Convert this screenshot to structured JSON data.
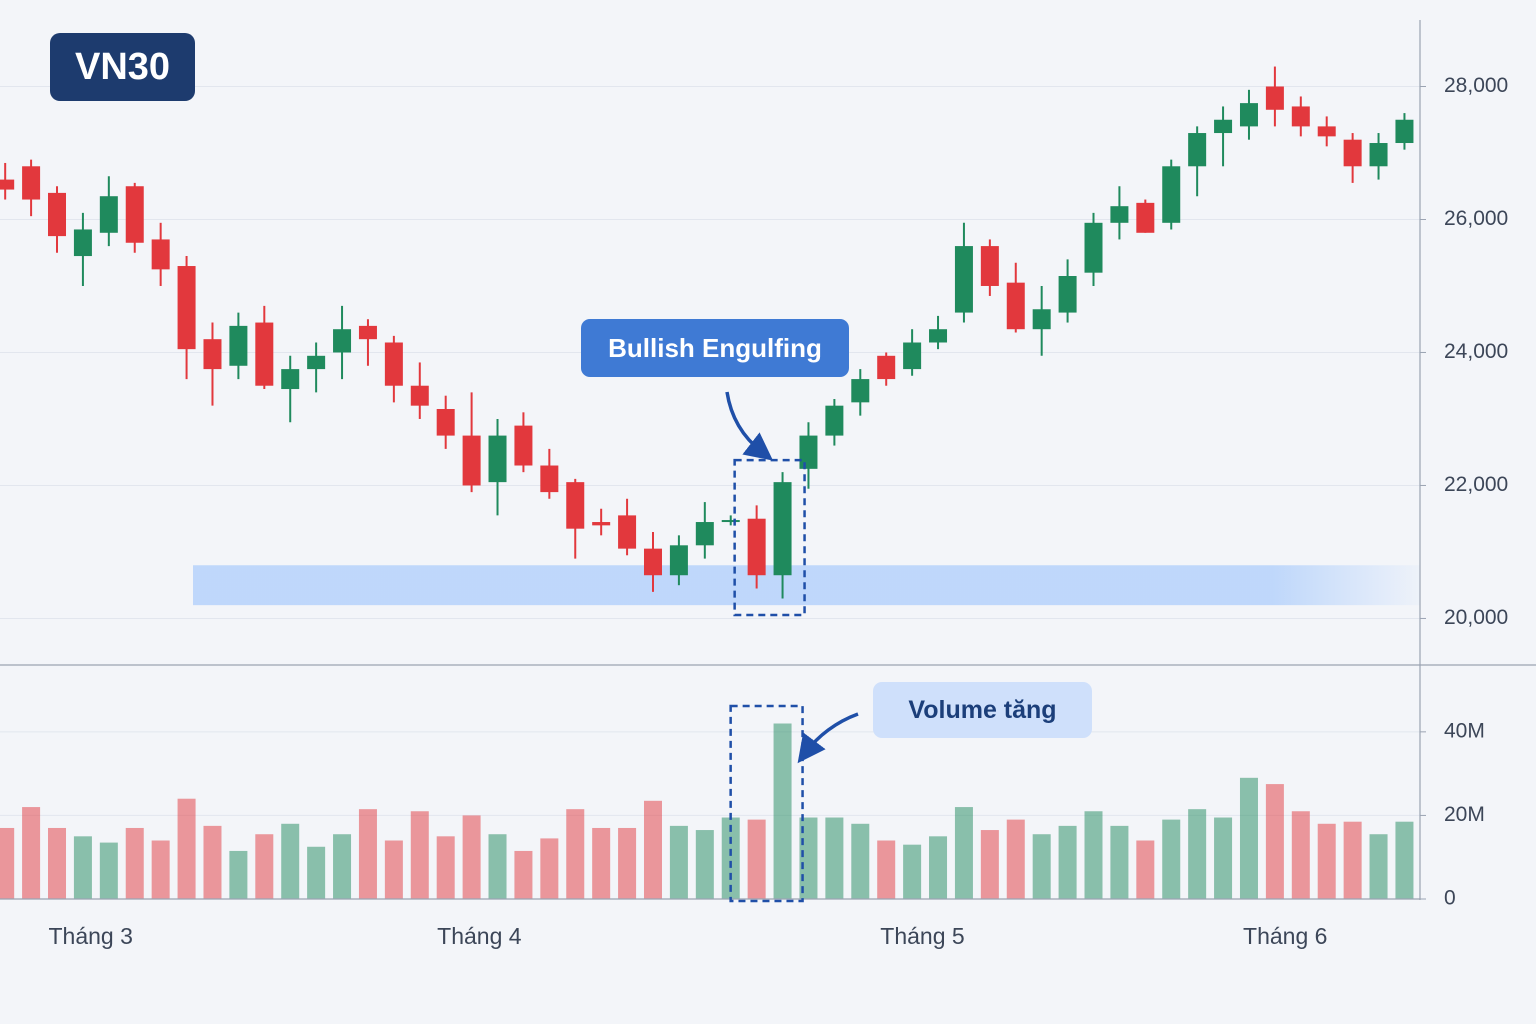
{
  "chart_data": {
    "type": "candlestick",
    "title": "VN30",
    "annotations": [
      "Bullish Engulfing",
      "Volume tăng"
    ],
    "up_color": "#1f8a5d",
    "down_color": "#e2383d",
    "x": [
      0,
      1,
      2,
      3,
      4,
      5,
      6,
      7,
      8,
      9,
      10,
      11,
      12,
      13,
      14,
      15,
      16,
      17,
      18,
      19,
      20,
      21,
      22,
      23,
      24,
      25,
      26,
      27,
      28,
      29,
      30,
      31,
      32,
      33,
      34,
      35,
      36,
      37,
      38,
      39,
      40,
      41,
      42,
      43,
      44,
      45,
      46,
      47,
      48,
      49,
      50,
      51,
      52,
      53,
      54
    ],
    "open": [
      26600,
      26800,
      26400,
      25450,
      25800,
      26500,
      25700,
      25300,
      24200,
      23800,
      24450,
      23450,
      23750,
      24000,
      24400,
      24150,
      23500,
      23150,
      22750,
      22050,
      22900,
      22300,
      22050,
      21450,
      21550,
      21050,
      20650,
      21100,
      21450,
      21500,
      20650,
      22250,
      22750,
      23250,
      23950,
      23750,
      24150,
      24600,
      25600,
      25050,
      24350,
      24600,
      25200,
      25950,
      26250,
      25950,
      26800,
      27300,
      27400,
      28000,
      27700,
      27400,
      27200,
      26800,
      27150
    ],
    "close": [
      26450,
      26300,
      25750,
      25850,
      26350,
      25650,
      25250,
      24050,
      23750,
      24400,
      23500,
      23750,
      23950,
      24350,
      24200,
      23500,
      23200,
      22750,
      22000,
      22750,
      22300,
      21900,
      21350,
      21400,
      21050,
      20650,
      21100,
      21450,
      21480,
      20650,
      22050,
      22750,
      23200,
      23600,
      23600,
      24150,
      24350,
      25600,
      25000,
      24350,
      24650,
      25150,
      25950,
      26200,
      25800,
      26800,
      27300,
      27500,
      27750,
      27650,
      27400,
      27250,
      26800,
      27150,
      27500
    ],
    "high": [
      26850,
      26900,
      26500,
      26100,
      26650,
      26550,
      25950,
      25450,
      24450,
      24600,
      24700,
      23950,
      24150,
      24700,
      24500,
      24250,
      23850,
      23350,
      23400,
      23000,
      23100,
      22550,
      22100,
      21650,
      21800,
      21300,
      21250,
      21750,
      21550,
      21700,
      22200,
      22950,
      23300,
      23750,
      24000,
      24350,
      24550,
      25950,
      25700,
      25350,
      25000,
      25400,
      26100,
      26500,
      26300,
      26900,
      27400,
      27700,
      27950,
      28300,
      27850,
      27550,
      27300,
      27300,
      27600
    ],
    "low": [
      26300,
      26050,
      25500,
      25000,
      25600,
      25500,
      25000,
      23600,
      23200,
      23600,
      23450,
      22950,
      23400,
      23600,
      23800,
      23250,
      23000,
      22550,
      21900,
      21550,
      22200,
      21800,
      20900,
      21250,
      20950,
      20400,
      20500,
      20900,
      21400,
      20450,
      20300,
      21950,
      22600,
      23050,
      23500,
      23650,
      24050,
      24450,
      24850,
      24300,
      23950,
      24450,
      25000,
      25700,
      25800,
      25850,
      26350,
      26800,
      27200,
      27400,
      27250,
      27100,
      26550,
      26600,
      27050
    ],
    "volume": [
      17000000,
      22000000,
      17000000,
      15000000,
      13500000,
      17000000,
      14000000,
      24000000,
      17500000,
      11500000,
      15500000,
      18000000,
      12500000,
      15500000,
      21500000,
      14000000,
      21000000,
      15000000,
      20000000,
      15500000,
      11500000,
      14500000,
      21500000,
      17000000,
      17000000,
      23500000,
      17500000,
      16500000,
      19500000,
      19000000,
      42000000,
      19500000,
      19500000,
      18000000,
      14000000,
      13000000,
      15000000,
      22000000,
      16500000,
      19000000,
      15500000,
      17500000,
      21000000,
      17500000,
      14000000,
      19000000,
      21500000,
      19500000,
      29000000,
      27500000,
      21000000,
      18000000,
      18500000,
      15500000,
      18500000
    ],
    "xlim": [
      -0.2,
      54.6
    ],
    "xticks": [
      {
        "value": 3.3,
        "label": "Tháng 3"
      },
      {
        "value": 18.3,
        "label": "Tháng 4"
      },
      {
        "value": 35.4,
        "label": "Tháng 5"
      },
      {
        "value": 49.4,
        "label": "Tháng 6"
      }
    ],
    "ylim": [
      19300,
      29000
    ],
    "yticks": [
      {
        "value": 20000,
        "label": "20,000"
      },
      {
        "value": 22000,
        "label": "22,000"
      },
      {
        "value": 24000,
        "label": "24,000"
      },
      {
        "value": 26000,
        "label": "26,000"
      },
      {
        "value": 28000,
        "label": "28,000"
      }
    ],
    "volume_ylim": [
      0,
      56000000
    ],
    "volume_yticks": [
      0,
      {
        "value": 20000000,
        "label": "20M"
      },
      {
        "value": 40000000,
        "label": "40M"
      }
    ],
    "support_zone": [
      20200,
      20800
    ],
    "highlight": [
      29,
      30
    ],
    "grid": true
  }
}
